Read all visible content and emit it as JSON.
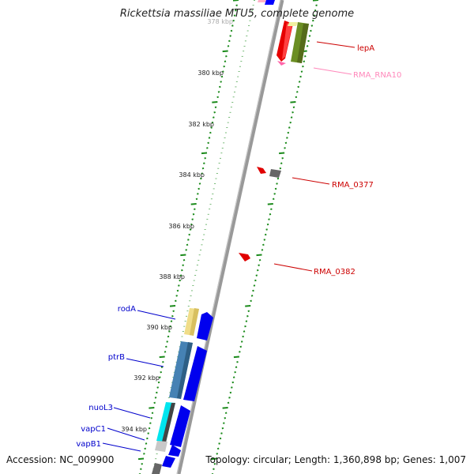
{
  "title": "Rickettsia massiliae MTU5, complete genome",
  "footer": {
    "accession": "Accession: NC_009900",
    "topology": "Topology: circular; Length: 1,360,898 bp; Genes: 1,007"
  },
  "ruler": {
    "labels": [
      "378 kbp",
      "380 kbp",
      "382 kbp",
      "384 kbp",
      "386 kbp",
      "388 kbp",
      "390 kbp",
      "392 kbp",
      "394 kbp"
    ]
  },
  "colors": {
    "backbone": "#8a8a8a",
    "tick": "#1a8a1a",
    "forward_label": "#cc0000",
    "reverse_label": "#0000cc",
    "rna_label": "#ff88bb"
  },
  "features": {
    "forward": [
      {
        "name": "lepA",
        "color": "#cc0000"
      },
      {
        "name": "RMA_RNA10",
        "color": "#ff88bb"
      },
      {
        "name": "RMA_0377",
        "color": "#cc0000"
      },
      {
        "name": "RMA_0382",
        "color": "#cc0000"
      }
    ],
    "reverse": [
      {
        "name": "rodA",
        "color": "#0000cc"
      },
      {
        "name": "ptrB",
        "color": "#0000cc"
      },
      {
        "name": "nuoL3",
        "color": "#0000cc"
      },
      {
        "name": "vapC1",
        "color": "#0000cc"
      },
      {
        "name": "vapB1",
        "color": "#0000cc"
      }
    ]
  }
}
